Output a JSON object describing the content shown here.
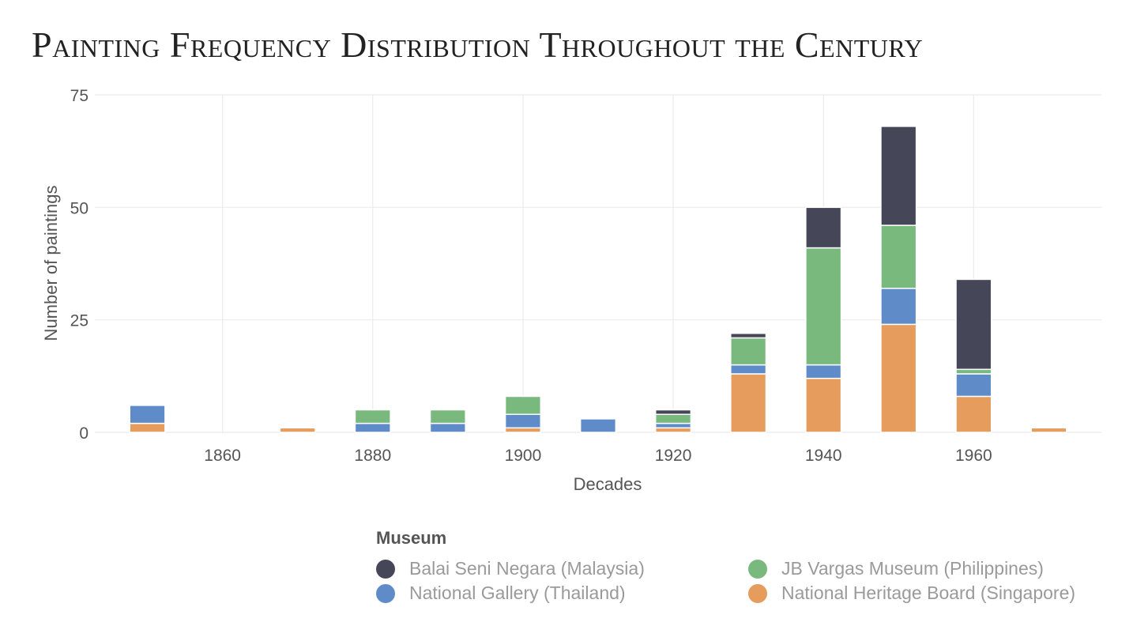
{
  "title": "Painting Frequency Distribution Throughout the Century",
  "legend": {
    "title": "Museum",
    "items": [
      {
        "label": "Balai Seni Negara (Malaysia)",
        "color": "#464659"
      },
      {
        "label": "JB Vargas Museum (Philippines)",
        "color": "#79b97d"
      },
      {
        "label": "National Gallery (Thailand)",
        "color": "#5f8cc8"
      },
      {
        "label": "National Heritage Board (Singapore)",
        "color": "#e59c5c"
      }
    ]
  },
  "chart_data": {
    "type": "bar",
    "stacked": true,
    "title": "Painting Frequency Distribution Throughout the Century",
    "xlabel": "Decades",
    "ylabel": "Number of paintings",
    "x": [
      1850,
      1870,
      1880,
      1890,
      1900,
      1910,
      1920,
      1930,
      1940,
      1950,
      1960,
      1970
    ],
    "xlim": [
      1843,
      1977
    ],
    "ylim": [
      0,
      75
    ],
    "xticks": [
      1860,
      1880,
      1900,
      1920,
      1940,
      1960
    ],
    "yticks": [
      0,
      25,
      50,
      75
    ],
    "grid": true,
    "legend_position": "bottom",
    "series": [
      {
        "name": "National Heritage Board (Singapore)",
        "color": "#e59c5c",
        "values": [
          2,
          1,
          0,
          0,
          1,
          0,
          1,
          13,
          12,
          24,
          8,
          1
        ]
      },
      {
        "name": "National Gallery (Thailand)",
        "color": "#5f8cc8",
        "values": [
          4,
          0,
          2,
          2,
          3,
          3,
          1,
          2,
          3,
          8,
          5,
          0
        ]
      },
      {
        "name": "JB Vargas Museum (Philippines)",
        "color": "#79b97d",
        "values": [
          0,
          0,
          3,
          3,
          4,
          0,
          2,
          6,
          26,
          14,
          1,
          0
        ]
      },
      {
        "name": "Balai Seni Negara (Malaysia)",
        "color": "#464659",
        "values": [
          0,
          0,
          0,
          0,
          0,
          0,
          1,
          1,
          9,
          22,
          20,
          0
        ]
      }
    ]
  }
}
